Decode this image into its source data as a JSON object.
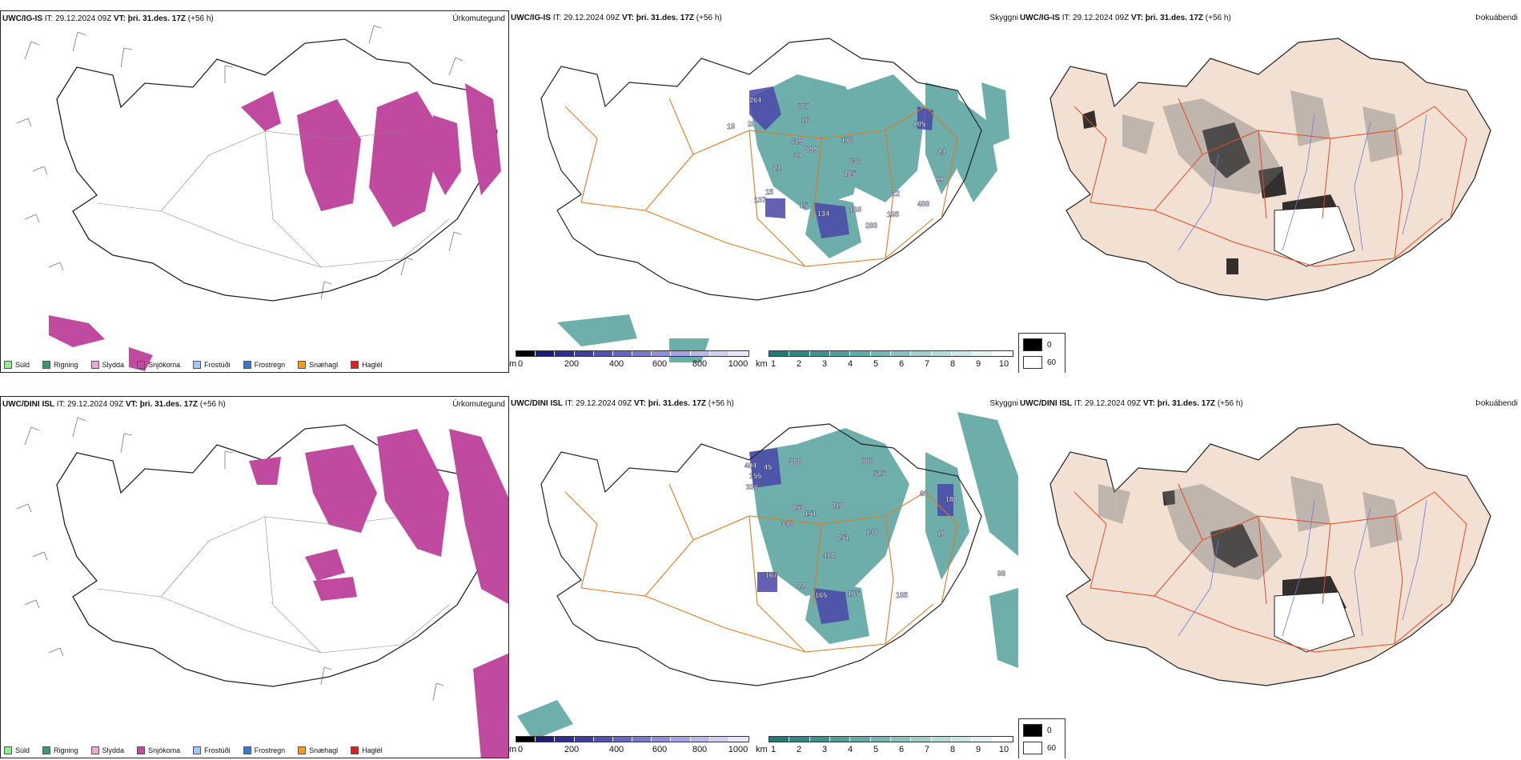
{
  "rows": [
    {
      "model": "UWC/IG-IS",
      "it_label": "IT:",
      "it_value": "29.12.2024 09Z",
      "vt_label": "VT:",
      "vt_value": "þri. 31.des. 17Z",
      "lead": "(+56 h)",
      "panel_titles": [
        "Úrkomutegund",
        "Skyggni",
        "Þokuábendi"
      ],
      "ceiling_labels": [
        "264",
        "667",
        "16",
        "20",
        "19",
        "619",
        "899",
        "176",
        "105",
        "39",
        "24",
        "636",
        "21",
        "285",
        "99",
        "15",
        "137",
        "15",
        "134",
        "168",
        "22",
        "195",
        "488",
        "283"
      ]
    },
    {
      "model": "UWC/DINI ISL",
      "it_label": "IT:",
      "it_value": "29.12.2024 09Z",
      "vt_label": "VT:",
      "vt_value": "þri. 31.des. 17Z",
      "lead": "(+56 h)",
      "panel_titles": [
        "Úrkomutegund",
        "Skyggni",
        "Þokuábendi"
      ],
      "ceiling_labels": [
        "404",
        "45",
        "388",
        "666",
        "155",
        "525",
        "336",
        "63",
        "180",
        "253",
        "151",
        "218",
        "346",
        "251",
        "148",
        "10",
        "412",
        "167",
        "22",
        "165",
        "175",
        "185",
        "98"
      ]
    }
  ],
  "precip_legend": [
    {
      "label": "Súld",
      "color": "#90ee90"
    },
    {
      "label": "Rigning",
      "color": "#3c9a6a"
    },
    {
      "label": "Slydda",
      "color": "#f0a8d8"
    },
    {
      "label": "Snjókoma",
      "color": "#c04aa0"
    },
    {
      "label": "Frostúði",
      "color": "#a0c8f0"
    },
    {
      "label": "Frostregn",
      "color": "#3a78c8"
    },
    {
      "label": "Snæhagl",
      "color": "#f09a20"
    },
    {
      "label": "Haglél",
      "color": "#e02020"
    }
  ],
  "ceiling_bar": {
    "unit": "m",
    "ticks": [
      "0",
      "200",
      "400",
      "600",
      "800",
      "1000"
    ],
    "colors": [
      "#000000",
      "#1c1c7a",
      "#2e2e8e",
      "#3f3fa0",
      "#5252b0",
      "#6666bf",
      "#7a7acc",
      "#8f8fd8",
      "#a4a4e2",
      "#babaea",
      "#d0d0f2",
      "#e6e6f8"
    ]
  },
  "visibility_bar": {
    "unit": "km",
    "ticks": [
      "1",
      "2",
      "3",
      "4",
      "5",
      "6",
      "7",
      "8",
      "9",
      "10"
    ],
    "colors": [
      "#1f7a78",
      "#2f8684",
      "#3f9290",
      "#519e9c",
      "#64aaa8",
      "#78b6b4",
      "#8cc2c0",
      "#a2cecc",
      "#b8dad8",
      "#cee6e4",
      "#e4f2f1",
      "#ffffff"
    ]
  },
  "fog_key": {
    "values": [
      "0",
      "60"
    ],
    "colors": [
      "#000000",
      "#ffffff"
    ]
  },
  "colors": {
    "snow": "#c04aa0",
    "roads": "#e07a20",
    "land_fog": "#f2e0d2",
    "visibility": "#3d9490",
    "ceiling": "#4a46a8",
    "coast": "#222222"
  }
}
